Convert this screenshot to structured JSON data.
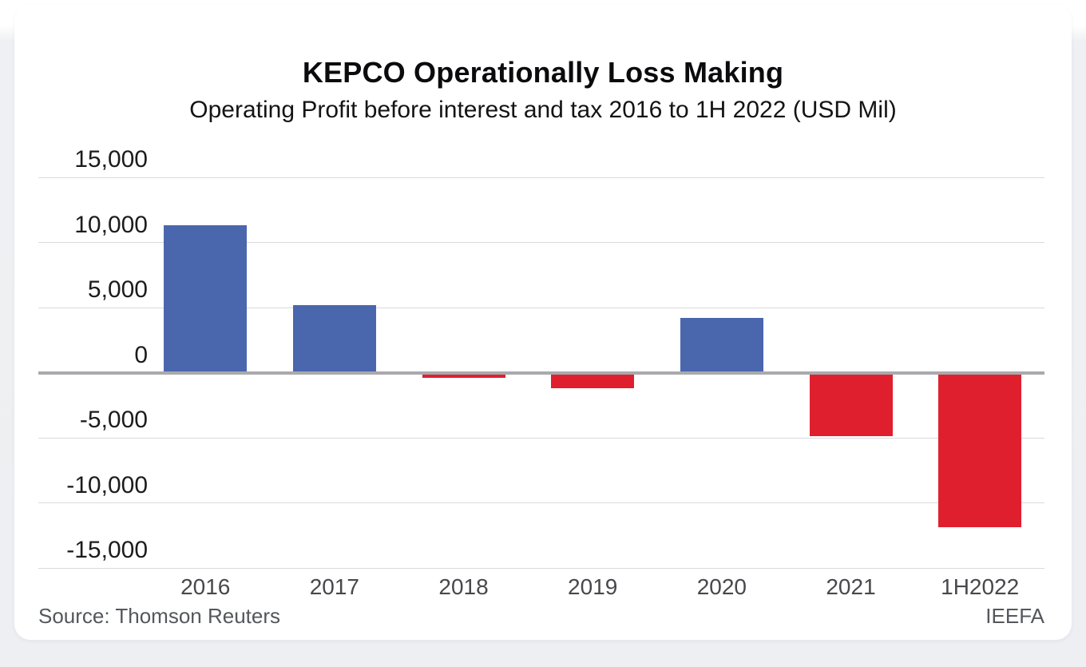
{
  "page": {
    "background_color": "#eef0f3",
    "card_color": "#ffffff"
  },
  "header": {
    "title": "KEPCO Operationally Loss Making",
    "subtitle": "Operating Profit before interest and tax 2016 to 1H 2022 (USD Mil)"
  },
  "footer": {
    "source": "Source: Thomson Reuters",
    "attribution": "IEEFA"
  },
  "chart_data": {
    "type": "bar",
    "title": "KEPCO Operationally Loss Making",
    "subtitle": "Operating Profit before interest and tax 2016 to 1H 2022 (USD Mil)",
    "unit": "USD Mil",
    "categories": [
      "2016",
      "2017",
      "2018",
      "2019",
      "2020",
      "2021",
      "1H2022"
    ],
    "values": [
      11300,
      5200,
      -400,
      -1200,
      4200,
      -4850,
      -11900
    ],
    "ylim": [
      -15000,
      15000
    ],
    "yticks": [
      15000,
      10000,
      5000,
      0,
      -5000,
      -10000,
      -15000
    ],
    "ytick_labels": [
      "15,000",
      "10,000",
      "5,000",
      "0",
      "-5,000",
      "-10,000",
      "-15,000"
    ],
    "grid": true,
    "legend": "none",
    "positive_color": "#4a66ad",
    "negative_color": "#e01f2e",
    "gridline_color": "#d9dadc",
    "axis_line_color": "#a9aaac"
  }
}
